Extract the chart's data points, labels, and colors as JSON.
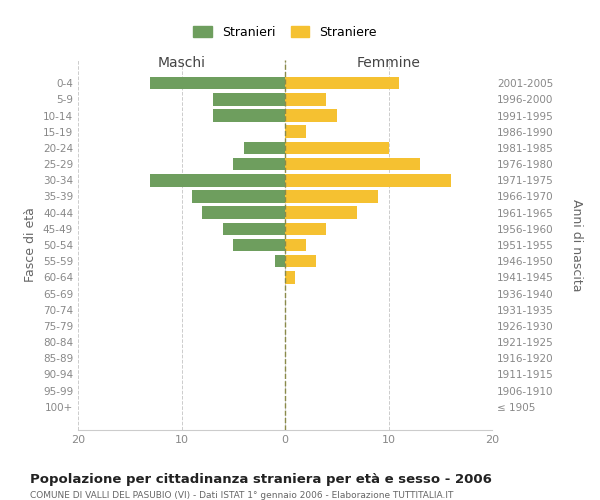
{
  "age_groups": [
    "0-4",
    "5-9",
    "10-14",
    "15-19",
    "20-24",
    "25-29",
    "30-34",
    "35-39",
    "40-44",
    "45-49",
    "50-54",
    "55-59",
    "60-64",
    "65-69",
    "70-74",
    "75-79",
    "80-84",
    "85-89",
    "90-94",
    "95-99",
    "100+"
  ],
  "birth_years": [
    "2001-2005",
    "1996-2000",
    "1991-1995",
    "1986-1990",
    "1981-1985",
    "1976-1980",
    "1971-1975",
    "1966-1970",
    "1961-1965",
    "1956-1960",
    "1951-1955",
    "1946-1950",
    "1941-1945",
    "1936-1940",
    "1931-1935",
    "1926-1930",
    "1921-1925",
    "1916-1920",
    "1911-1915",
    "1906-1910",
    "≤ 1905"
  ],
  "maschi": [
    13,
    7,
    7,
    0,
    4,
    5,
    13,
    9,
    8,
    6,
    5,
    1,
    0,
    0,
    0,
    0,
    0,
    0,
    0,
    0,
    0
  ],
  "femmine": [
    11,
    4,
    5,
    2,
    10,
    13,
    16,
    9,
    7,
    4,
    2,
    3,
    1,
    0,
    0,
    0,
    0,
    0,
    0,
    0,
    0
  ],
  "color_maschi": "#6e9e5e",
  "color_femmine": "#f5c131",
  "title": "Popolazione per cittadinanza straniera per età e sesso - 2006",
  "subtitle": "COMUNE DI VALLI DEL PASUBIO (VI) - Dati ISTAT 1° gennaio 2006 - Elaborazione TUTTITALIA.IT",
  "label_maschi": "Maschi",
  "label_femmine": "Femmine",
  "ylabel_left": "Fasce di età",
  "ylabel_right": "Anni di nascita",
  "legend_maschi": "Stranieri",
  "legend_femmine": "Straniere",
  "xlim": 20,
  "bg_color": "#ffffff",
  "grid_color": "#cccccc",
  "axis_label_color": "#666666",
  "tick_label_color": "#888888"
}
